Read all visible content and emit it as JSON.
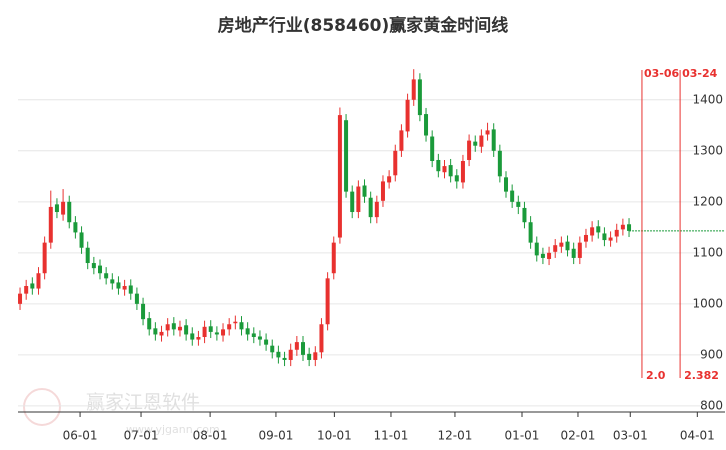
{
  "chart_data": {
    "type": "candlestick",
    "title": "房地产行业(858460)赢家黄金时间线",
    "watermark": "赢家江恩软件",
    "watermark_url": "www.yjgann.com",
    "up_color": "#e8312f",
    "down_color": "#1a9a3a",
    "grid": true,
    "xlim": [
      -0.33,
      114.6
    ],
    "ylim": [
      788,
      1478
    ],
    "yticks": [
      800,
      900,
      1000,
      1100,
      1200,
      1300,
      1400
    ],
    "xticks": [
      {
        "value": 9.76,
        "label": "06-01"
      },
      {
        "value": 19.67,
        "label": "07-01"
      },
      {
        "value": 30.9,
        "label": "08-01"
      },
      {
        "value": 41.6,
        "label": "09-01"
      },
      {
        "value": 51.1,
        "label": "10-01"
      },
      {
        "value": 60.3,
        "label": "11-01"
      },
      {
        "value": 70.7,
        "label": "12-01"
      },
      {
        "value": 81.6,
        "label": "01-01"
      },
      {
        "value": 90.7,
        "label": "02-01"
      },
      {
        "value": 99.2,
        "label": "03-01"
      },
      {
        "value": 110.1,
        "label": "04-01"
      }
    ],
    "open": [
      1000,
      1020,
      1040,
      1030,
      1060,
      1120,
      1195,
      1175,
      1200,
      1160,
      1140,
      1110,
      1080,
      1075,
      1060,
      1048,
      1042,
      1028,
      1036,
      1020,
      1000,
      972,
      952,
      938,
      948,
      962,
      948,
      958,
      942,
      930,
      935,
      956,
      944,
      938,
      950,
      962,
      964,
      952,
      942,
      936,
      930,
      918,
      906,
      894,
      890,
      910,
      925,
      902,
      890,
      905,
      960,
      1060,
      1130,
      1360,
      1220,
      1180,
      1232,
      1208,
      1170,
      1202,
      1238,
      1252,
      1300,
      1338,
      1400,
      1440,
      1372,
      1328,
      1282,
      1258,
      1272,
      1252,
      1238,
      1282,
      1318,
      1308,
      1332,
      1342,
      1300,
      1248,
      1222,
      1200,
      1188,
      1160,
      1120,
      1098,
      1088,
      1102,
      1112,
      1122,
      1108,
      1090,
      1122,
      1134,
      1152,
      1138,
      1124,
      1132,
      1146,
      1156
    ],
    "high": [
      1032,
      1047,
      1052,
      1072,
      1132,
      1222,
      1207,
      1225,
      1212,
      1172,
      1152,
      1122,
      1092,
      1087,
      1072,
      1060,
      1054,
      1047,
      1048,
      1032,
      1012,
      984,
      964,
      957,
      972,
      974,
      967,
      970,
      954,
      947,
      967,
      968,
      956,
      962,
      972,
      977,
      976,
      964,
      954,
      948,
      942,
      930,
      918,
      906,
      922,
      937,
      937,
      914,
      917,
      972,
      1062,
      1132,
      1385,
      1372,
      1232,
      1242,
      1244,
      1220,
      1212,
      1252,
      1262,
      1312,
      1352,
      1412,
      1460,
      1452,
      1384,
      1340,
      1294,
      1282,
      1284,
      1264,
      1292,
      1332,
      1330,
      1342,
      1355,
      1354,
      1312,
      1260,
      1234,
      1212,
      1200,
      1172,
      1132,
      1110,
      1112,
      1127,
      1132,
      1134,
      1120,
      1132,
      1147,
      1162,
      1164,
      1150,
      1142,
      1157,
      1167,
      1168
    ],
    "low": [
      988,
      1008,
      1018,
      1018,
      1048,
      1108,
      1168,
      1163,
      1148,
      1128,
      1098,
      1068,
      1058,
      1048,
      1038,
      1028,
      1018,
      1016,
      1008,
      988,
      958,
      938,
      928,
      926,
      936,
      938,
      936,
      928,
      918,
      918,
      923,
      933,
      928,
      926,
      938,
      950,
      938,
      928,
      923,
      918,
      908,
      893,
      883,
      878,
      878,
      898,
      888,
      878,
      878,
      893,
      948,
      1048,
      1118,
      1208,
      1168,
      1168,
      1198,
      1158,
      1158,
      1190,
      1226,
      1240,
      1288,
      1326,
      1388,
      1358,
      1318,
      1268,
      1248,
      1246,
      1238,
      1226,
      1226,
      1270,
      1298,
      1296,
      1320,
      1288,
      1238,
      1208,
      1188,
      1176,
      1148,
      1108,
      1083,
      1078,
      1076,
      1090,
      1100,
      1093,
      1078,
      1078,
      1110,
      1122,
      1128,
      1113,
      1112,
      1120,
      1134,
      1131
    ],
    "close": [
      1020,
      1035,
      1030,
      1060,
      1120,
      1190,
      1180,
      1200,
      1160,
      1140,
      1110,
      1080,
      1070,
      1060,
      1050,
      1040,
      1030,
      1035,
      1020,
      1000,
      970,
      950,
      940,
      945,
      960,
      950,
      955,
      940,
      930,
      935,
      955,
      945,
      940,
      950,
      960,
      965,
      950,
      940,
      935,
      930,
      920,
      905,
      895,
      890,
      910,
      925,
      900,
      890,
      905,
      960,
      1050,
      1120,
      1370,
      1220,
      1180,
      1230,
      1210,
      1170,
      1200,
      1240,
      1250,
      1300,
      1340,
      1400,
      1440,
      1370,
      1330,
      1280,
      1260,
      1270,
      1250,
      1240,
      1280,
      1320,
      1310,
      1330,
      1340,
      1300,
      1250,
      1220,
      1200,
      1190,
      1160,
      1120,
      1095,
      1090,
      1100,
      1115,
      1120,
      1105,
      1090,
      1120,
      1135,
      1150,
      1140,
      1125,
      1130,
      1145,
      1155,
      1143
    ],
    "last_price": 1143,
    "last_price_color": "#1a9a3a",
    "time_lines": [
      {
        "x": 101.1,
        "top": "03-06",
        "bottom": "2.0"
      },
      {
        "x": 107.3,
        "top": "03-24",
        "bottom": "2.382"
      }
    ],
    "time_line_color": "#e8312f"
  }
}
